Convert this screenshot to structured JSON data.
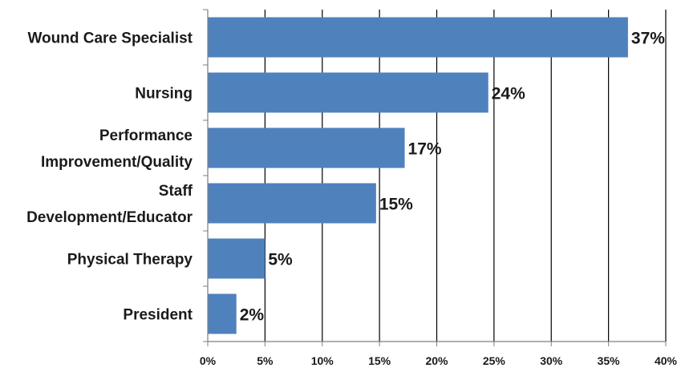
{
  "chart_data": {
    "type": "bar",
    "orientation": "horizontal",
    "categories": [
      [
        "Wound Care Specialist"
      ],
      [
        "Nursing"
      ],
      [
        "Performance",
        "Improvement/Quality"
      ],
      [
        "Staff",
        "Development/Educator"
      ],
      [
        "Physical Therapy"
      ],
      [
        "President"
      ]
    ],
    "values": [
      36.7,
      24.5,
      17.2,
      14.7,
      5.0,
      2.5
    ],
    "data_labels": [
      "37%",
      "24%",
      "17%",
      "15%",
      "5%",
      "2%"
    ],
    "xlim": [
      0,
      40
    ],
    "x_ticks": [
      0,
      5,
      10,
      15,
      20,
      25,
      30,
      35,
      40
    ],
    "x_tick_labels": [
      "0%",
      "5%",
      "10%",
      "15%",
      "20%",
      "25%",
      "30%",
      "35%",
      "40%"
    ],
    "grid": true,
    "legend": "none",
    "colors": {
      "bar": "#4f81bd",
      "grid": "#000000",
      "axis": "#7f7f7f"
    }
  }
}
